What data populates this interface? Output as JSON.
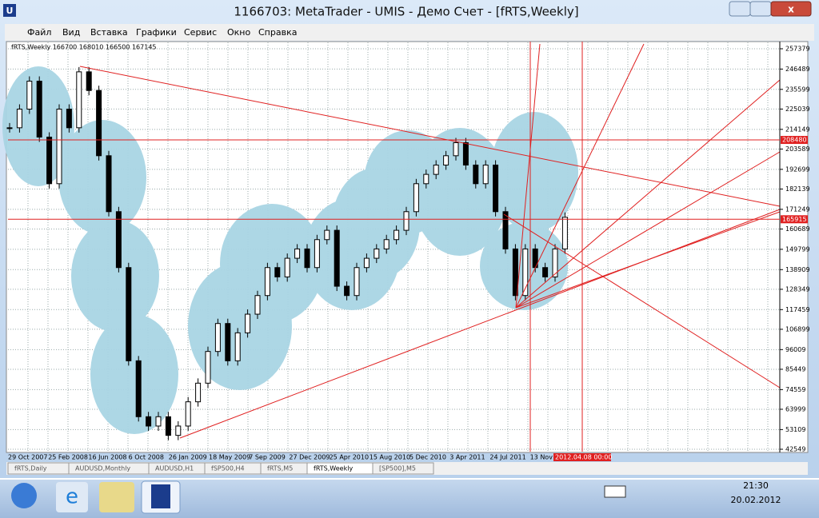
{
  "window": {
    "title": "1166703: MetaTrader - UMIS - Демо Счет - [fRTS,Weekly]"
  },
  "menu": [
    "Файл",
    "Вид",
    "Вставка",
    "Графики",
    "Сервис",
    "Окно",
    "Справка"
  ],
  "chart": {
    "header": "fRTS,Weekly  166700 168010 166500 167145",
    "price_ticks": [
      257379,
      246489,
      235599,
      225039,
      214149,
      203589,
      192699,
      182139,
      171249,
      160689,
      149799,
      138909,
      128349,
      117459,
      106899,
      96009,
      85449,
      74559,
      63999,
      53109,
      42549
    ],
    "price_markers": [
      208480,
      165915
    ],
    "dates": [
      "29 Oct 2007",
      "25 Feb 2008",
      "16 Jun 2008",
      "6 Oct 2008",
      "26 Jan 2009",
      "18 May 2009",
      "7 Sep 2009",
      "27 Dec 2009",
      "25 Apr 2010",
      "15 Aug 2010",
      "5 Dec 2010",
      "3 Apr 2011",
      "24 Jul 2011",
      "13 Nov"
    ],
    "cursor_date": "2012.04.08 00:00",
    "closes": [
      215000,
      225000,
      240000,
      210000,
      185000,
      225000,
      215000,
      245000,
      235000,
      200000,
      170000,
      140000,
      90000,
      60000,
      55000,
      60000,
      50000,
      55000,
      68000,
      78000,
      95000,
      110000,
      90000,
      105000,
      115000,
      125000,
      140000,
      135000,
      145000,
      150000,
      140000,
      155000,
      160000,
      130000,
      125000,
      140000,
      145000,
      150000,
      155000,
      160000,
      170000,
      185000,
      190000,
      195000,
      200000,
      207000,
      195000,
      185000,
      195000,
      170000,
      150000,
      125000,
      150000,
      140000,
      135000,
      150000,
      167000
    ]
  },
  "tabs": [
    "fRTS,Daily",
    "AUDUSD,Monthly",
    "AUDUSD,H1",
    "fSP500,H4",
    "fRTS,M5",
    "fRTS,Weekly",
    "[SP500],M5"
  ],
  "taskbar": {
    "time": "21:30",
    "date": "20.02.2012"
  }
}
